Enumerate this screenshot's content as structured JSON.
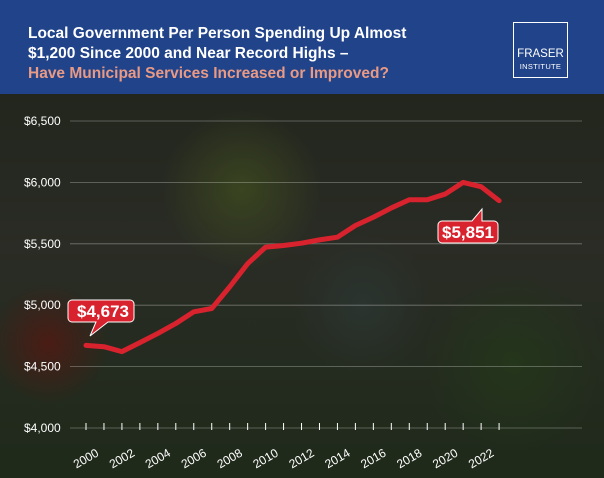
{
  "header": {
    "title_line1": "Local Government Per Person Spending Up Almost",
    "title_line2": "$1,200 Since 2000 and Near Record Highs –",
    "subtitle": "Have Municipal Services Increased or Improved?",
    "logo_line1": "FRASER",
    "logo_line2": "INSTITUTE"
  },
  "colors": {
    "header": "#21438a",
    "line": "#d8232e",
    "subtitle": "#e89a85"
  },
  "chart_data": {
    "type": "line",
    "title": "Local Government Per Person Spending",
    "xlabel": "",
    "ylabel": "",
    "ylim": [
      4000,
      6500
    ],
    "xlim": [
      2000,
      2023
    ],
    "yticks": [
      "$4,000",
      "$4,500",
      "$5,000",
      "$5,500",
      "$6,000",
      "$6,500"
    ],
    "ytick_values": [
      4000,
      4500,
      5000,
      5500,
      6000,
      6500
    ],
    "xticks": [
      "2000",
      "2002",
      "2004",
      "2006",
      "2008",
      "2010",
      "2012",
      "2014",
      "2016",
      "2018",
      "2020",
      "2022"
    ],
    "grid": true,
    "series": [
      {
        "name": "Per person spending",
        "x": [
          2000,
          2001,
          2002,
          2003,
          2004,
          2005,
          2006,
          2007,
          2008,
          2009,
          2010,
          2011,
          2012,
          2013,
          2014,
          2015,
          2016,
          2017,
          2018,
          2019,
          2020,
          2021,
          2022,
          2023
        ],
        "values": [
          4673,
          4662,
          4622,
          4695,
          4770,
          4851,
          4946,
          4973,
          5149,
          5338,
          5473,
          5486,
          5505,
          5532,
          5554,
          5649,
          5716,
          5792,
          5859,
          5859,
          5905,
          6000,
          5965,
          5851
        ]
      }
    ],
    "annotations": [
      {
        "label": "$4,673",
        "x": 2000,
        "value": 4673
      },
      {
        "label": "$5,851",
        "x": 2023,
        "value": 5851
      }
    ]
  }
}
